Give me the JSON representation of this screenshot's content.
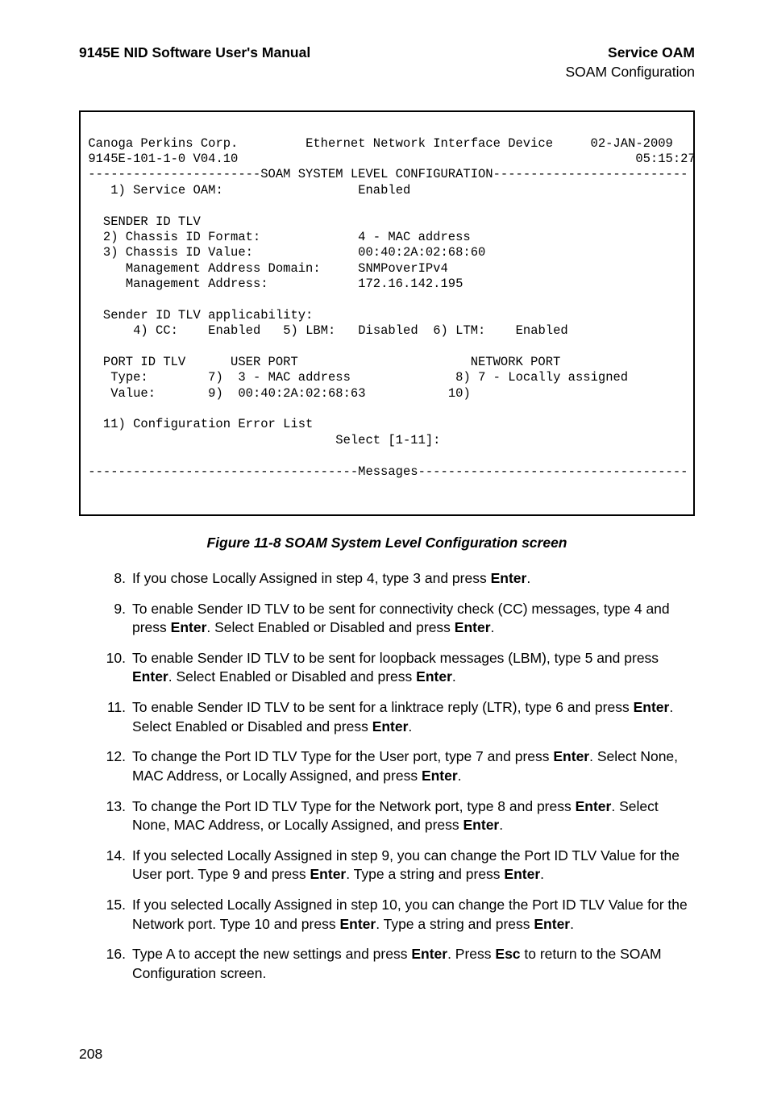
{
  "header": {
    "left": "9145E NID Software User's Manual",
    "right_top": "Service OAM",
    "right_sub": "SOAM Configuration"
  },
  "terminal": {
    "company": "Canoga Perkins Corp.",
    "device_desc": "Ethernet Network Interface Device",
    "date": "02-JAN-2009",
    "model": "9145E-101-1-0 V04.10",
    "time": "05:15:27",
    "section_title": "SOAM SYSTEM LEVEL CONFIGURATION",
    "item1_label": "1) Service OAM:",
    "item1_value": "Enabled",
    "sender_header": "SENDER ID TLV",
    "item2_label": "2) Chassis ID Format:",
    "item2_value": "4 - MAC address",
    "item3_label": "3) Chassis ID Value:",
    "item3_value": "00:40:2A:02:68:60",
    "mgmt_domain_label": "Management Address Domain:",
    "mgmt_domain_value": "SNMPoverIPv4",
    "mgmt_addr_label": "Management Address:",
    "mgmt_addr_value": "172.16.142.195",
    "applicability_label": "Sender ID TLV applicability:",
    "cc_label": "4) CC:",
    "cc_value": "Enabled",
    "lbm_label": "5) LBM:",
    "lbm_value": "Disabled",
    "ltm_label": "6) LTM:",
    "ltm_value": "Enabled",
    "port_header": "PORT ID TLV",
    "user_port_header": "USER PORT",
    "network_port_header": "NETWORK PORT",
    "type_label": "Type:",
    "user_type_num": "7)",
    "user_type_value": "3 - MAC address",
    "net_type_num": "8)",
    "net_type_value": "7 - Locally assigned",
    "value_label": "Value:",
    "user_value_num": "9)",
    "user_value_value": "00:40:2A:02:68:63",
    "net_value_num": "10)",
    "item11": "11) Configuration Error List",
    "prompt": "Select [1-11]:",
    "messages_label": "Messages"
  },
  "figure_caption": "Figure 11-8  SOAM System Level Configuration screen",
  "steps": [
    {
      "n": "8.",
      "html": "If you chose Locally Assigned in step 4, type 3 and press <b>Enter</b>."
    },
    {
      "n": "9.",
      "html": "To enable Sender ID TLV to be sent for connectivity check (CC) messages, type 4 and press <b>Enter</b>. Select Enabled or Disabled and press <b>Enter</b>."
    },
    {
      "n": "10.",
      "html": "To enable Sender ID TLV to be sent for loopback messages (LBM), type 5 and press <b>Enter</b>. Select Enabled or Disabled and press <b>Enter</b>."
    },
    {
      "n": "11.",
      "html": "To enable Sender ID TLV to be sent for a linktrace reply (LTR), type 6 and press <b>Enter</b>. Select Enabled or Disabled and press <b>Enter</b>."
    },
    {
      "n": "12.",
      "html": "To change the Port ID TLV Type for the User port, type 7 and press <b>Enter</b>. Select None, MAC Address, or Locally Assigned, and press <b>Enter</b>."
    },
    {
      "n": "13.",
      "html": "To change the Port ID TLV Type for the Network port, type 8 and press <b>Enter</b>. Select None, MAC Address, or Locally Assigned, and press <b>Enter</b>."
    },
    {
      "n": "14.",
      "html": "If you selected Locally Assigned in step 9, you can change the Port ID TLV Value for the User port. Type 9 and press <b>Enter</b>. Type a string and press <b>Enter</b>."
    },
    {
      "n": "15.",
      "html": "If you selected Locally Assigned in step 10, you can change the Port ID TLV Value for the Network port. Type 10 and press <b>Enter</b>. Type a string and press <b>Enter</b>."
    },
    {
      "n": "16.",
      "html": "Type A to accept the new settings and press <b>Enter</b>. Press <b>Esc</b> to return to the SOAM Configuration screen."
    }
  ],
  "page_number": "208"
}
